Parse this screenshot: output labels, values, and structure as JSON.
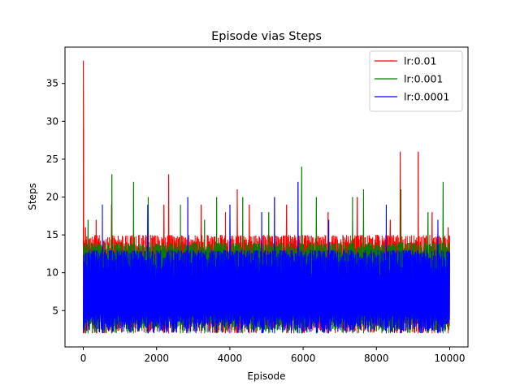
{
  "chart_data": {
    "type": "line",
    "title": "Episode vias Steps",
    "xlabel": "Episode",
    "ylabel": "Steps",
    "xlim": [
      -500,
      10500
    ],
    "ylim": [
      0.2,
      39.8
    ],
    "xticks": [
      0,
      2000,
      4000,
      6000,
      8000,
      10000
    ],
    "yticks": [
      5,
      10,
      15,
      20,
      25,
      30,
      35
    ],
    "grid": false,
    "legend_position": "upper right",
    "x_range": [
      0,
      10000
    ],
    "series": [
      {
        "name": "lr:0.01",
        "color": "#ff0000",
        "min_value": 2,
        "typical_max": 15,
        "peaks": [
          {
            "x": 0,
            "y": 38
          },
          {
            "x": 5,
            "y": 29
          },
          {
            "x": 60,
            "y": 16
          },
          {
            "x": 350,
            "y": 17
          },
          {
            "x": 770,
            "y": 19
          },
          {
            "x": 2200,
            "y": 19
          },
          {
            "x": 2330,
            "y": 23
          },
          {
            "x": 3220,
            "y": 19
          },
          {
            "x": 3880,
            "y": 18
          },
          {
            "x": 4200,
            "y": 21
          },
          {
            "x": 4530,
            "y": 19
          },
          {
            "x": 5550,
            "y": 19
          },
          {
            "x": 6680,
            "y": 18
          },
          {
            "x": 7480,
            "y": 20
          },
          {
            "x": 8380,
            "y": 17
          },
          {
            "x": 8650,
            "y": 26
          },
          {
            "x": 9140,
            "y": 26
          },
          {
            "x": 9520,
            "y": 18
          },
          {
            "x": 9960,
            "y": 16
          }
        ]
      },
      {
        "name": "lr:0.001",
        "color": "#008000",
        "min_value": 2,
        "typical_max": 14,
        "peaks": [
          {
            "x": 130,
            "y": 17
          },
          {
            "x": 780,
            "y": 23
          },
          {
            "x": 1370,
            "y": 22
          },
          {
            "x": 1770,
            "y": 20
          },
          {
            "x": 2650,
            "y": 19
          },
          {
            "x": 3310,
            "y": 17
          },
          {
            "x": 3640,
            "y": 20
          },
          {
            "x": 4350,
            "y": 20
          },
          {
            "x": 5060,
            "y": 18
          },
          {
            "x": 5960,
            "y": 24
          },
          {
            "x": 6360,
            "y": 20
          },
          {
            "x": 7350,
            "y": 20
          },
          {
            "x": 7650,
            "y": 21
          },
          {
            "x": 8670,
            "y": 21
          },
          {
            "x": 9410,
            "y": 18
          },
          {
            "x": 9820,
            "y": 22
          }
        ]
      },
      {
        "name": "lr:0.0001",
        "color": "#0000ff",
        "min_value": 2,
        "typical_max": 13,
        "peaks": [
          {
            "x": 520,
            "y": 19
          },
          {
            "x": 1760,
            "y": 19
          },
          {
            "x": 2850,
            "y": 20
          },
          {
            "x": 4000,
            "y": 19
          },
          {
            "x": 4870,
            "y": 18
          },
          {
            "x": 5220,
            "y": 20
          },
          {
            "x": 5860,
            "y": 22
          },
          {
            "x": 6700,
            "y": 17
          },
          {
            "x": 8270,
            "y": 19
          },
          {
            "x": 9680,
            "y": 17
          }
        ]
      }
    ]
  }
}
